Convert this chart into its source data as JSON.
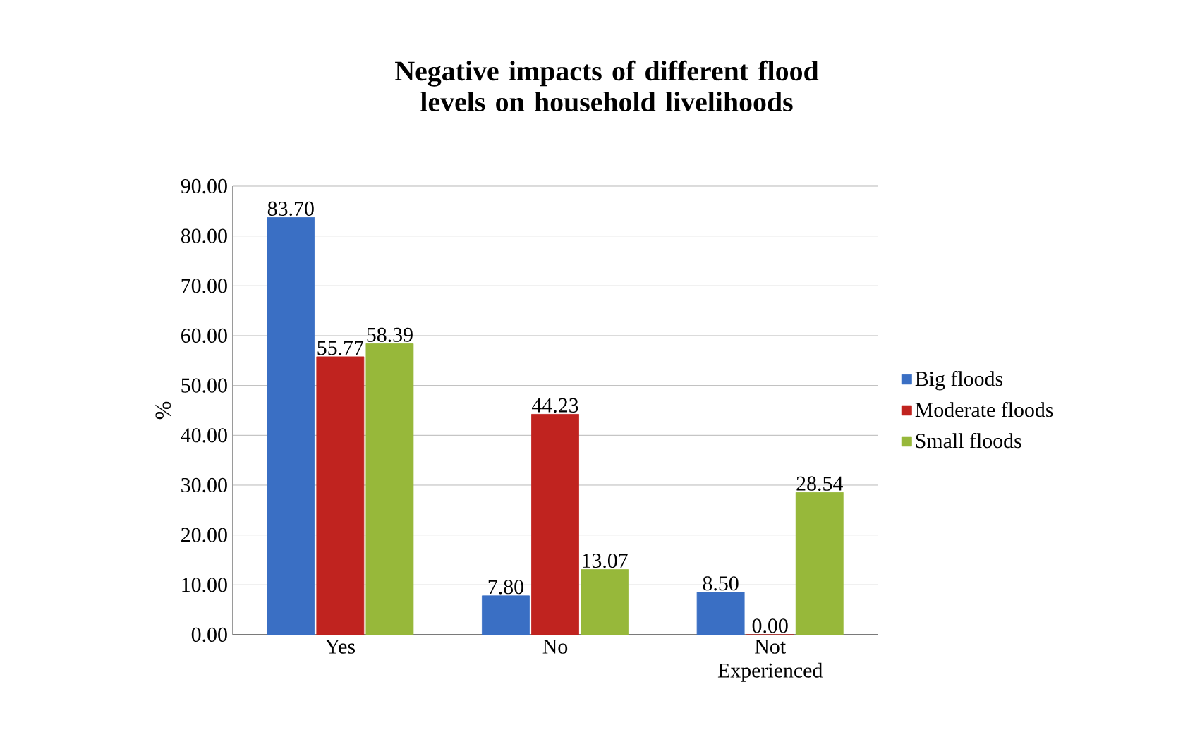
{
  "chart_data": {
    "type": "bar",
    "title": "Negative impacts of different flood levels on household livelihoods",
    "ylabel": "%",
    "categories": [
      "Yes",
      "No",
      "Not Experienced"
    ],
    "series": [
      {
        "name": "Big floods",
        "color": "#3a6fc4",
        "values": [
          83.7,
          7.8,
          8.5
        ],
        "value_labels": [
          "83.70",
          "7.80",
          "8.50"
        ]
      },
      {
        "name": "Moderate floods",
        "color": "#c0231f",
        "values": [
          55.77,
          44.23,
          0.0
        ],
        "value_labels": [
          "55.77",
          "44.23",
          "0.00"
        ]
      },
      {
        "name": "Small floods",
        "color": "#97b83a",
        "values": [
          58.39,
          13.07,
          28.54
        ],
        "value_labels": [
          "58.39",
          "13.07",
          "28.54"
        ]
      }
    ],
    "ylim": [
      0,
      90
    ],
    "yticks": [
      {
        "value": 0,
        "label": "0.00"
      },
      {
        "value": 10,
        "label": "10.00"
      },
      {
        "value": 20,
        "label": "20.00"
      },
      {
        "value": 30,
        "label": "30.00"
      },
      {
        "value": 40,
        "label": "40.00"
      },
      {
        "value": 50,
        "label": "50.00"
      },
      {
        "value": 60,
        "label": "60.00"
      },
      {
        "value": 70,
        "label": "70.00"
      },
      {
        "value": 80,
        "label": "80.00"
      },
      {
        "value": 90,
        "label": "90.00"
      }
    ],
    "grid": "y",
    "legend": "right"
  }
}
